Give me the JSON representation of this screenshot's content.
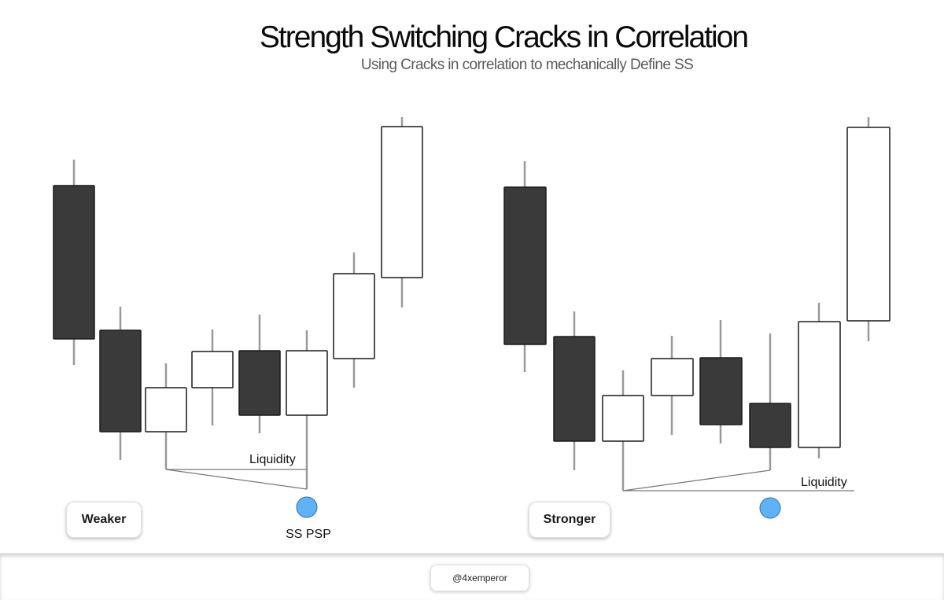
{
  "header": {
    "title": "Strength Switching Cracks in Correlation",
    "subtitle": "Using Cracks in correlation to mechanically Define SS"
  },
  "colors": {
    "bearish_body": "#3a3a3a",
    "bullish_body": "#ffffff",
    "wick": "#9a9a9a",
    "marker": "#5fb2f5"
  },
  "left_panel": {
    "label": "Weaker",
    "liquidity_label": "Liquidity",
    "marker_label": "SS PSP"
  },
  "right_panel": {
    "label": "Stronger",
    "liquidity_label": "Liquidity"
  },
  "footer": {
    "handle": "@4xemperor"
  }
}
